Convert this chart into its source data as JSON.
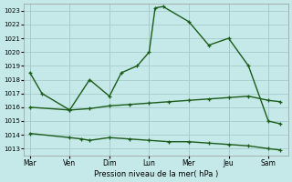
{
  "background_color": "#c5e8e8",
  "grid_color": "#a8cccc",
  "line_color": "#1a5c1a",
  "xlabel": "Pression niveau de la mer( hPa )",
  "ylim": [
    1012.5,
    1023.5
  ],
  "yticks": [
    1013,
    1014,
    1015,
    1016,
    1017,
    1018,
    1019,
    1020,
    1021,
    1022,
    1023
  ],
  "x_labels": [
    "Mar",
    "Ven",
    "Dim",
    "Lun",
    "Mer",
    "Jeu",
    "Sam"
  ],
  "x_positions": [
    0,
    1,
    2,
    3,
    4,
    5,
    6
  ],
  "xlim": [
    -0.15,
    6.5
  ],
  "line1": {
    "x": [
      0.0,
      0.3,
      1.0,
      1.5,
      2.0,
      2.3,
      2.7,
      3.0,
      3.15,
      3.35,
      4.0,
      4.5,
      5.0,
      5.5,
      6.0,
      6.3
    ],
    "y": [
      1018.5,
      1017.0,
      1015.8,
      1018.0,
      1016.8,
      1018.5,
      1019.0,
      1020.0,
      1023.2,
      1023.3,
      1022.2,
      1020.5,
      1021.0,
      1019.0,
      1015.0,
      1014.8
    ]
  },
  "line2": {
    "x": [
      0.0,
      1.0,
      1.5,
      2.0,
      2.5,
      3.0,
      3.5,
      4.0,
      4.5,
      5.0,
      5.5,
      6.0,
      6.3
    ],
    "y": [
      1016.0,
      1015.8,
      1015.9,
      1016.1,
      1016.2,
      1016.3,
      1016.4,
      1016.5,
      1016.6,
      1016.7,
      1016.8,
      1016.5,
      1016.4
    ]
  },
  "line3": {
    "x": [
      0.0,
      1.0,
      1.3,
      1.5,
      2.0,
      2.5,
      3.0,
      3.5,
      4.0,
      4.5,
      5.0,
      5.5,
      6.0,
      6.3
    ],
    "y": [
      1014.1,
      1013.8,
      1013.7,
      1013.6,
      1013.8,
      1013.7,
      1013.6,
      1013.5,
      1013.5,
      1013.4,
      1013.3,
      1013.2,
      1013.0,
      1012.9
    ]
  }
}
